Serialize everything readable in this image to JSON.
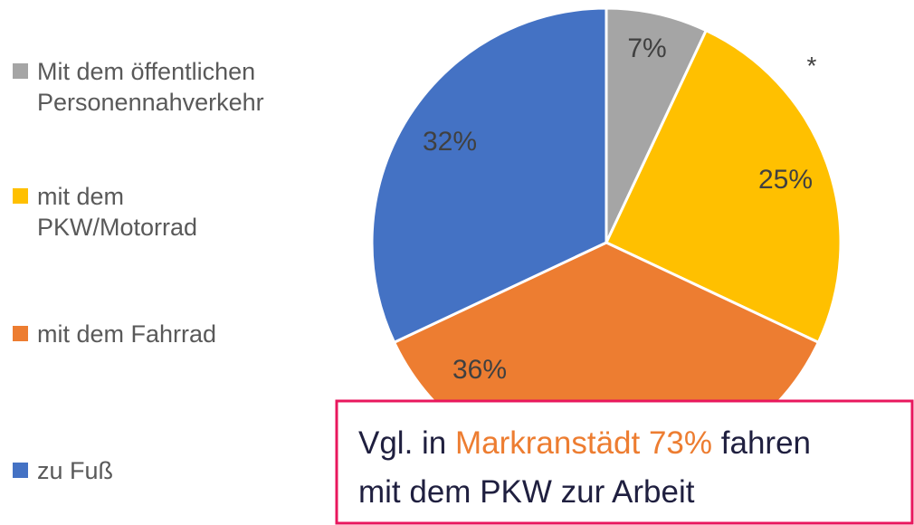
{
  "chart_data": {
    "type": "pie",
    "categories": [
      "Mit dem öffentlichen Personennahverkehr",
      "mit dem PKW/Motorrad",
      "mit dem Fahrrad",
      "zu Fuß"
    ],
    "values": [
      7,
      25,
      36,
      32
    ],
    "value_labels": [
      "7%",
      "25%",
      "36%",
      "32%"
    ],
    "colors": [
      "#a5a5a5",
      "#ffc000",
      "#ed7d31",
      "#4472c4"
    ],
    "marker": "*",
    "annotation": {
      "lines": [
        [
          "Vgl. in ",
          "Markranstädt 73%",
          " fahren"
        ],
        [
          "mit dem PKW zur Arbeit"
        ]
      ],
      "highlight_color": "#ed7d31",
      "border_color": "#e8175d"
    }
  }
}
